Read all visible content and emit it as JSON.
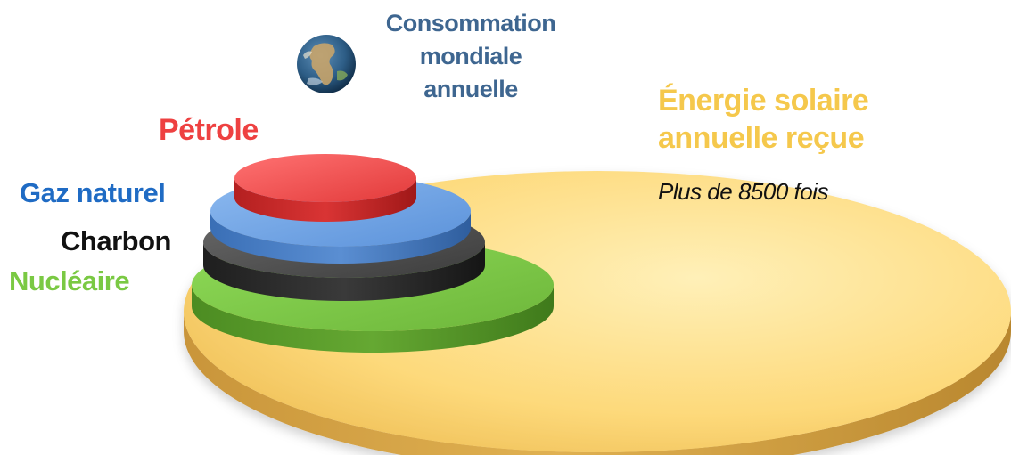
{
  "diagram": {
    "consumption_label": "Consommation\nmondiale\nannuelle",
    "solar": {
      "label": "Énergie solaire\nannuelle reçue",
      "ratio_text": "Plus de 8500 fois",
      "color": "#FDD97A"
    },
    "sources": [
      {
        "id": "petrole",
        "label": "Pétrole",
        "color": "#EE4141"
      },
      {
        "id": "gaz",
        "label": "Gaz naturel",
        "color": "#1F6BC4"
      },
      {
        "id": "charbon",
        "label": "Charbon",
        "color": "#111111"
      },
      {
        "id": "nucleaire",
        "label": "Nucléaire",
        "color": "#7AC943"
      }
    ],
    "consumption_label_color": "#3E6690",
    "solar_label_color": "#F5C84C",
    "icon": "earth-globe-icon"
  }
}
